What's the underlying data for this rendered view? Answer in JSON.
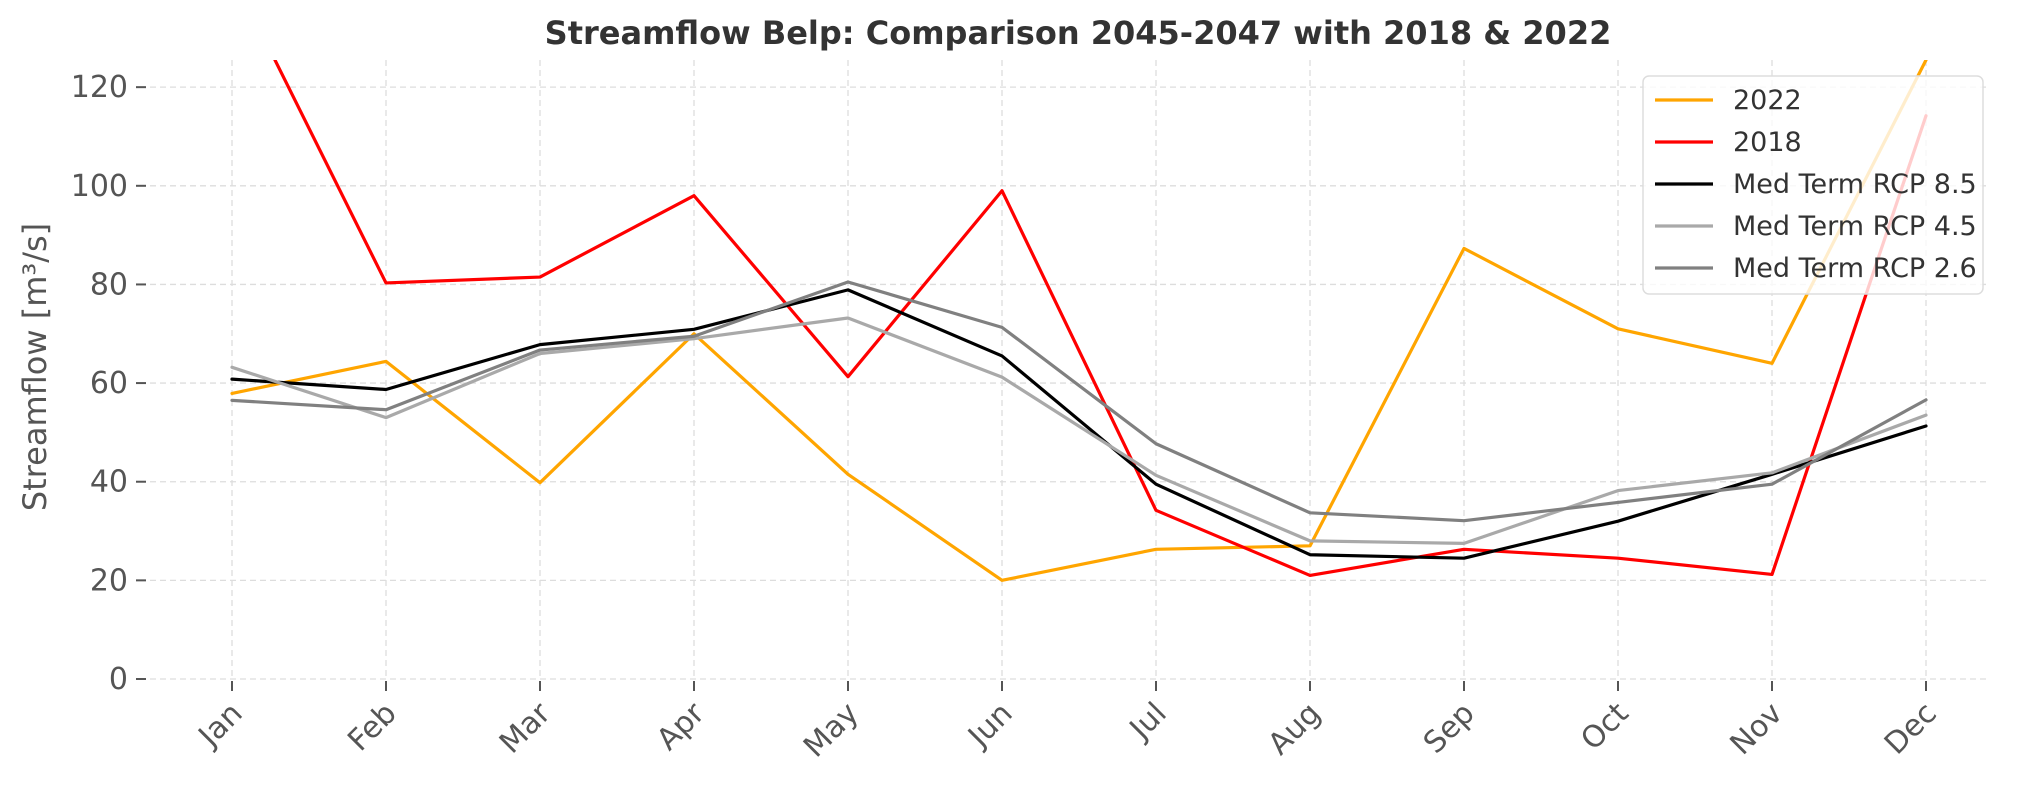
{
  "chart_data": {
    "type": "line",
    "title": "Streamflow Belp: Comparison 2045-2047 with 2018 & 2022",
    "xlabel": "",
    "ylabel": "Streamflow [m³/s]",
    "categories": [
      "Jan",
      "Feb",
      "Mar",
      "Apr",
      "May",
      "Jun",
      "Jul",
      "Aug",
      "Sep",
      "Oct",
      "Nov",
      "Dec"
    ],
    "ylim": [
      0,
      125
    ],
    "yticks": [
      0,
      20,
      40,
      60,
      80,
      100,
      120
    ],
    "grid": true,
    "legend_position": "top-right",
    "series": [
      {
        "name": "2022",
        "color": "#FFA500",
        "values": [
          57.9,
          64.4,
          39.8,
          70.0,
          41.5,
          20.0,
          26.3,
          27.0,
          87.3,
          71.0,
          64.0,
          125.5
        ]
      },
      {
        "name": "2018",
        "color": "#FF0000",
        "values": [
          143.0,
          80.3,
          81.5,
          98.0,
          61.3,
          99.0,
          34.2,
          21.0,
          26.3,
          24.5,
          21.2,
          114.2
        ]
      },
      {
        "name": "Med Term RCP 8.5",
        "color": "#000000",
        "values": [
          60.8,
          58.7,
          67.8,
          70.9,
          78.9,
          65.5,
          39.5,
          25.2,
          24.5,
          32.0,
          41.5,
          51.3
        ]
      },
      {
        "name": "Med Term RCP 4.5",
        "color": "#A9A9A9",
        "values": [
          63.2,
          53.0,
          66.0,
          69.0,
          73.2,
          61.2,
          41.3,
          28.0,
          27.5,
          38.2,
          41.8,
          53.5
        ]
      },
      {
        "name": "Med Term RCP 2.6",
        "color": "#808080",
        "values": [
          56.5,
          54.6,
          66.7,
          69.5,
          80.5,
          71.3,
          47.7,
          33.7,
          32.1,
          35.8,
          39.5,
          56.6
        ]
      }
    ]
  }
}
